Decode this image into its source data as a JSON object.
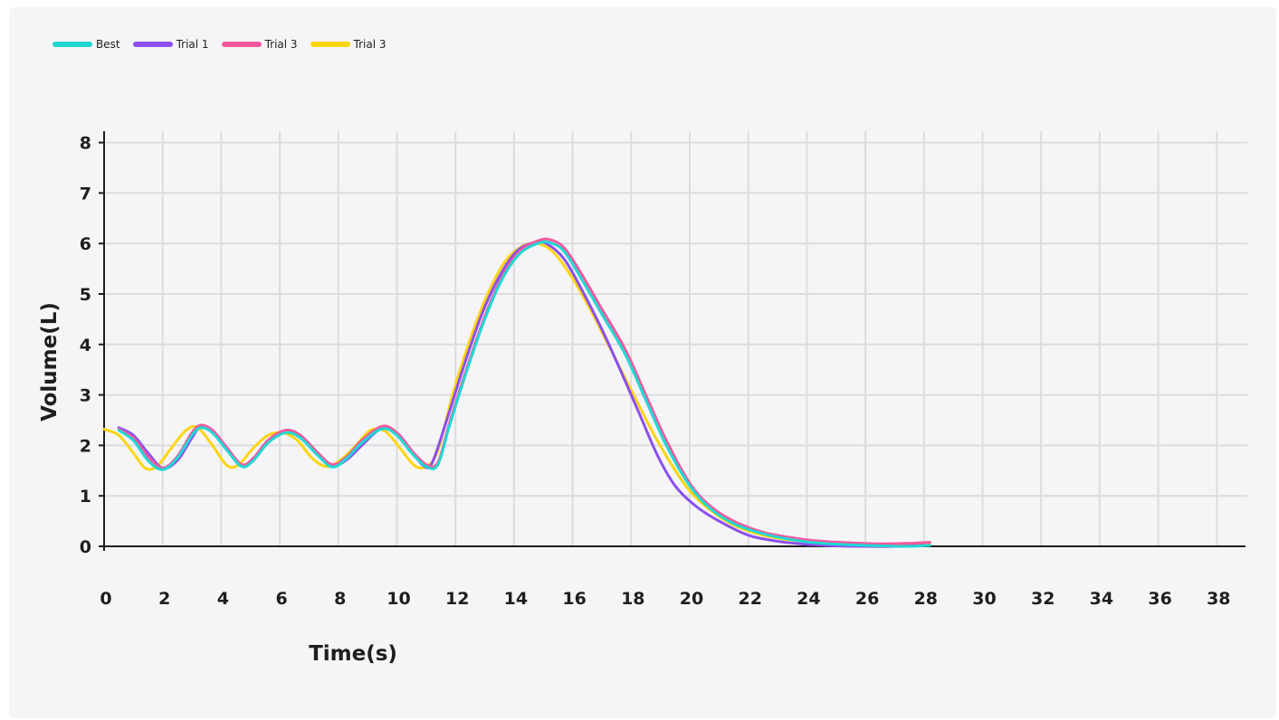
{
  "chart_data": {
    "type": "line",
    "title": "",
    "xlabel": "Time(s)",
    "ylabel": "Volume(L)",
    "xlim": [
      0,
      39
    ],
    "ylim": [
      0,
      8
    ],
    "x_ticks": [
      0,
      2,
      4,
      6,
      8,
      10,
      12,
      14,
      16,
      18,
      20,
      22,
      24,
      26,
      28,
      30,
      32,
      34,
      36,
      38
    ],
    "y_ticks": [
      0,
      1,
      2,
      3,
      4,
      5,
      6,
      7,
      8
    ],
    "grid": true,
    "legend_position": "top-left",
    "series": [
      {
        "name": "Best",
        "color": "#1fd8d4",
        "points": [
          [
            0.5,
            2.3
          ],
          [
            1.0,
            2.1
          ],
          [
            1.5,
            1.7
          ],
          [
            2.0,
            1.52
          ],
          [
            2.5,
            1.75
          ],
          [
            3.0,
            2.2
          ],
          [
            3.3,
            2.35
          ],
          [
            3.7,
            2.25
          ],
          [
            4.2,
            1.9
          ],
          [
            4.7,
            1.58
          ],
          [
            5.1,
            1.7
          ],
          [
            5.6,
            2.05
          ],
          [
            6.2,
            2.25
          ],
          [
            6.7,
            2.15
          ],
          [
            7.3,
            1.8
          ],
          [
            7.8,
            1.57
          ],
          [
            8.3,
            1.75
          ],
          [
            8.8,
            2.05
          ],
          [
            9.5,
            2.33
          ],
          [
            10.0,
            2.2
          ],
          [
            10.5,
            1.85
          ],
          [
            11.0,
            1.58
          ],
          [
            11.4,
            1.62
          ],
          [
            11.8,
            2.4
          ],
          [
            12.4,
            3.5
          ],
          [
            13.0,
            4.5
          ],
          [
            13.6,
            5.3
          ],
          [
            14.2,
            5.8
          ],
          [
            14.8,
            6.0
          ],
          [
            15.2,
            6.02
          ],
          [
            15.7,
            5.85
          ],
          [
            16.3,
            5.3
          ],
          [
            17.0,
            4.6
          ],
          [
            17.8,
            3.8
          ],
          [
            18.5,
            2.9
          ],
          [
            19.2,
            2.0
          ],
          [
            20.0,
            1.2
          ],
          [
            20.7,
            0.75
          ],
          [
            21.5,
            0.45
          ],
          [
            22.5,
            0.25
          ],
          [
            23.5,
            0.13
          ],
          [
            24.5,
            0.06
          ],
          [
            25.5,
            0.03
          ],
          [
            26.5,
            0.01
          ],
          [
            27.5,
            0.0
          ],
          [
            28.2,
            0.02
          ]
        ]
      },
      {
        "name": "Trial 1",
        "color": "#8b4ff0",
        "points": [
          [
            0.5,
            2.35
          ],
          [
            1.0,
            2.2
          ],
          [
            1.5,
            1.85
          ],
          [
            2.0,
            1.55
          ],
          [
            2.5,
            1.7
          ],
          [
            3.0,
            2.15
          ],
          [
            3.3,
            2.38
          ],
          [
            3.7,
            2.3
          ],
          [
            4.2,
            1.95
          ],
          [
            4.7,
            1.6
          ],
          [
            5.1,
            1.72
          ],
          [
            5.6,
            2.1
          ],
          [
            6.2,
            2.28
          ],
          [
            6.7,
            2.2
          ],
          [
            7.3,
            1.85
          ],
          [
            7.8,
            1.6
          ],
          [
            8.3,
            1.72
          ],
          [
            8.8,
            2.0
          ],
          [
            9.5,
            2.35
          ],
          [
            10.0,
            2.25
          ],
          [
            10.5,
            1.9
          ],
          [
            10.9,
            1.6
          ],
          [
            11.2,
            1.65
          ],
          [
            11.7,
            2.5
          ],
          [
            12.3,
            3.6
          ],
          [
            12.9,
            4.6
          ],
          [
            13.5,
            5.35
          ],
          [
            14.1,
            5.85
          ],
          [
            14.7,
            6.02
          ],
          [
            15.1,
            6.0
          ],
          [
            15.7,
            5.7
          ],
          [
            16.3,
            5.1
          ],
          [
            17.0,
            4.3
          ],
          [
            17.7,
            3.4
          ],
          [
            18.3,
            2.6
          ],
          [
            18.9,
            1.8
          ],
          [
            19.5,
            1.2
          ],
          [
            20.2,
            0.8
          ],
          [
            21.0,
            0.5
          ],
          [
            22.0,
            0.22
          ],
          [
            23.0,
            0.1
          ],
          [
            24.0,
            0.04
          ],
          [
            25.0,
            0.01
          ],
          [
            26.0,
            0.0
          ],
          [
            27.0,
            0.0
          ],
          [
            28.2,
            0.02
          ]
        ]
      },
      {
        "name": "Trial 3",
        "color": "#f7589d",
        "points": [
          [
            0.5,
            2.32
          ],
          [
            1.0,
            2.15
          ],
          [
            1.5,
            1.78
          ],
          [
            2.0,
            1.55
          ],
          [
            2.5,
            1.78
          ],
          [
            3.0,
            2.25
          ],
          [
            3.3,
            2.4
          ],
          [
            3.7,
            2.3
          ],
          [
            4.2,
            1.95
          ],
          [
            4.7,
            1.62
          ],
          [
            5.1,
            1.75
          ],
          [
            5.6,
            2.1
          ],
          [
            6.2,
            2.3
          ],
          [
            6.7,
            2.2
          ],
          [
            7.3,
            1.85
          ],
          [
            7.8,
            1.62
          ],
          [
            8.3,
            1.78
          ],
          [
            8.8,
            2.1
          ],
          [
            9.5,
            2.38
          ],
          [
            10.0,
            2.25
          ],
          [
            10.5,
            1.9
          ],
          [
            11.0,
            1.62
          ],
          [
            11.4,
            1.66
          ],
          [
            11.8,
            2.45
          ],
          [
            12.4,
            3.55
          ],
          [
            13.0,
            4.55
          ],
          [
            13.6,
            5.35
          ],
          [
            14.2,
            5.85
          ],
          [
            14.8,
            6.05
          ],
          [
            15.2,
            6.08
          ],
          [
            15.7,
            5.92
          ],
          [
            16.3,
            5.4
          ],
          [
            17.0,
            4.7
          ],
          [
            17.8,
            3.9
          ],
          [
            18.5,
            3.0
          ],
          [
            19.2,
            2.1
          ],
          [
            20.0,
            1.25
          ],
          [
            20.7,
            0.8
          ],
          [
            21.5,
            0.5
          ],
          [
            22.5,
            0.28
          ],
          [
            23.5,
            0.17
          ],
          [
            24.5,
            0.1
          ],
          [
            25.5,
            0.07
          ],
          [
            26.5,
            0.05
          ],
          [
            27.5,
            0.06
          ],
          [
            28.2,
            0.08
          ]
        ]
      },
      {
        "name": "Trial 3",
        "color": "#fed511",
        "points": [
          [
            0.0,
            2.32
          ],
          [
            0.5,
            2.2
          ],
          [
            1.0,
            1.85
          ],
          [
            1.4,
            1.55
          ],
          [
            1.8,
            1.58
          ],
          [
            2.3,
            1.95
          ],
          [
            2.8,
            2.3
          ],
          [
            3.2,
            2.35
          ],
          [
            3.7,
            2.0
          ],
          [
            4.2,
            1.6
          ],
          [
            4.6,
            1.62
          ],
          [
            5.1,
            1.95
          ],
          [
            5.6,
            2.2
          ],
          [
            6.1,
            2.25
          ],
          [
            6.6,
            2.1
          ],
          [
            7.1,
            1.75
          ],
          [
            7.6,
            1.58
          ],
          [
            8.1,
            1.72
          ],
          [
            8.6,
            2.0
          ],
          [
            9.1,
            2.3
          ],
          [
            9.6,
            2.28
          ],
          [
            10.1,
            1.95
          ],
          [
            10.6,
            1.6
          ],
          [
            11.0,
            1.58
          ],
          [
            11.4,
            1.9
          ],
          [
            11.9,
            3.0
          ],
          [
            12.5,
            4.1
          ],
          [
            13.1,
            5.0
          ],
          [
            13.7,
            5.65
          ],
          [
            14.3,
            5.95
          ],
          [
            14.8,
            6.0
          ],
          [
            15.3,
            5.85
          ],
          [
            15.9,
            5.4
          ],
          [
            16.6,
            4.7
          ],
          [
            17.3,
            3.9
          ],
          [
            18.0,
            3.1
          ],
          [
            18.7,
            2.3
          ],
          [
            19.4,
            1.6
          ],
          [
            20.0,
            1.1
          ],
          [
            20.7,
            0.72
          ],
          [
            21.5,
            0.42
          ],
          [
            22.5,
            0.22
          ],
          [
            23.5,
            0.12
          ],
          [
            24.5,
            0.06
          ],
          [
            25.5,
            0.03
          ],
          [
            26.5,
            0.02
          ],
          [
            27.5,
            0.03
          ],
          [
            28.2,
            0.05
          ]
        ]
      }
    ]
  }
}
